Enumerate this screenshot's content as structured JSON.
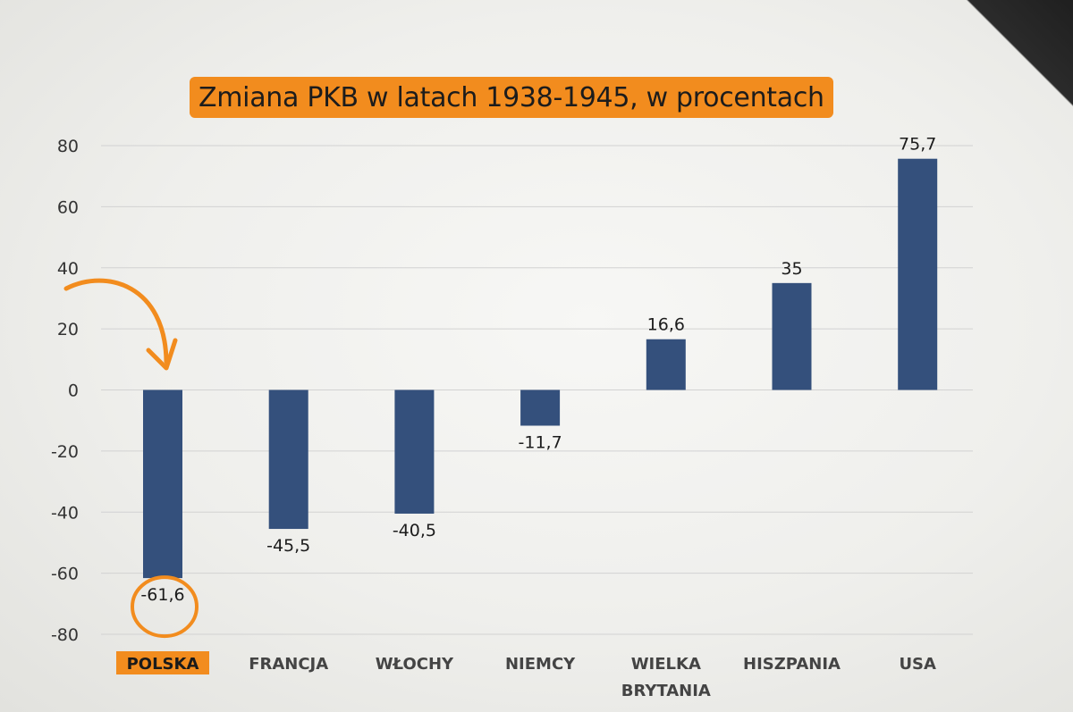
{
  "chart_data": {
    "type": "bar",
    "title": "Zmiana PKB w latach 1938-1945, w procentach",
    "categories": [
      "POLSKA",
      "FRANCJA",
      "WŁOCHY",
      "NIEMCY",
      "WIELKA BRYTANIA",
      "HISZPANIA",
      "USA"
    ],
    "values": [
      -61.6,
      -45.5,
      -40.5,
      -11.7,
      16.6,
      35,
      75.7
    ],
    "value_labels": [
      "-61,6",
      "-45,5",
      "-40,5",
      "-11,7",
      "16,6",
      "35",
      "75,7"
    ],
    "yticks": [
      80,
      60,
      40,
      20,
      0,
      -20,
      -40,
      -60,
      -80
    ],
    "ytick_labels": [
      "80",
      "60",
      "40",
      "20",
      "0",
      "-20",
      "-40",
      "-60",
      "-80"
    ],
    "ylim": [
      -80,
      80
    ],
    "xlabel": "",
    "ylabel": "",
    "grid": true,
    "highlighted_category": "POLSKA",
    "colors": {
      "bar": "#34507c",
      "highlight": "#f28c1e",
      "grid": "#d2d2d2"
    }
  }
}
